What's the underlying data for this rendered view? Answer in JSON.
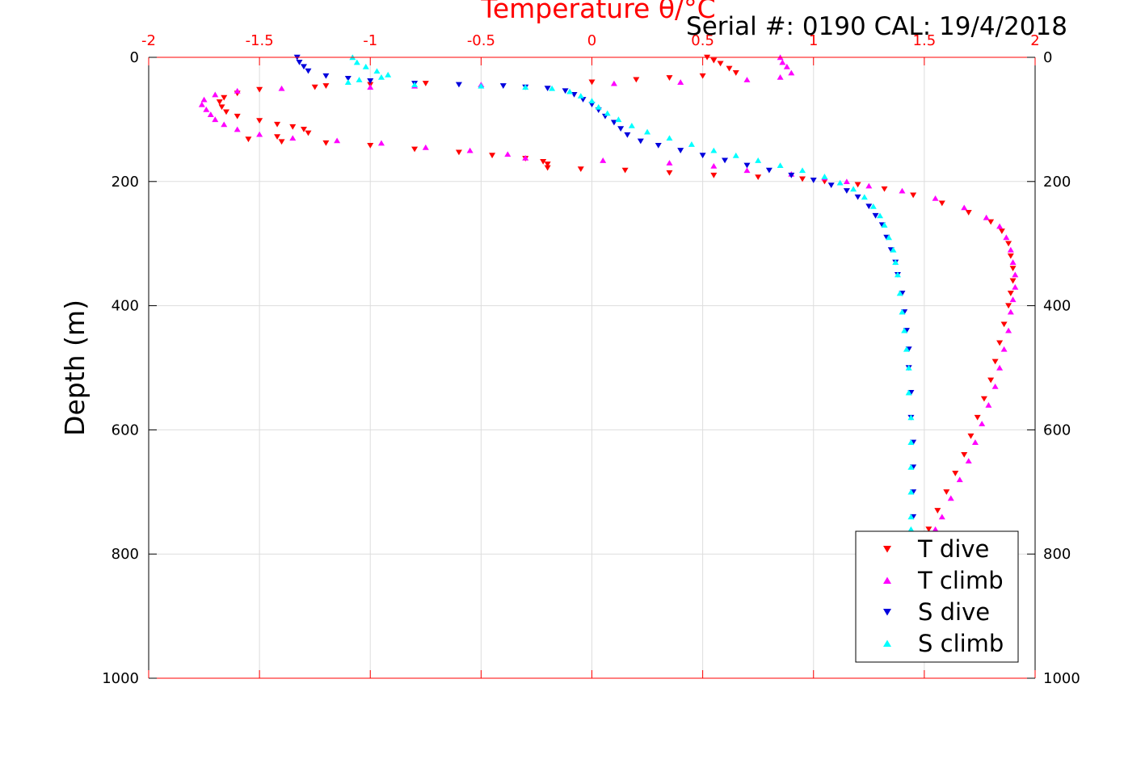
{
  "chart_data": {
    "type": "scatter",
    "title": "Serial #: 0190  CAL: 19/4/2018",
    "xlabel": "Temperature θ/°C",
    "ylabel": "Depth (m)",
    "xlim": [
      -2,
      2
    ],
    "ylim": [
      1000,
      0
    ],
    "x_ticks": [
      "-2",
      "-1.5",
      "-1",
      "-0.5",
      "0",
      "0.5",
      "1",
      "1.5",
      "2"
    ],
    "y_ticks": [
      "0",
      "200",
      "400",
      "600",
      "800",
      "1000"
    ],
    "y_ticks_right": [
      "0",
      "200",
      "400",
      "600",
      "800",
      "1000"
    ],
    "grid": true,
    "legend_position": "bottom-right",
    "colors": {
      "axis_x": "#ff0000",
      "axis_y": "#000000",
      "grid": "#dddddd"
    },
    "series": [
      {
        "name": "T dive",
        "marker": "triangle-down",
        "color": "#ff0000",
        "points": [
          [
            0.52,
            0
          ],
          [
            0.55,
            5
          ],
          [
            0.58,
            10
          ],
          [
            0.62,
            18
          ],
          [
            0.65,
            25
          ],
          [
            0.5,
            30
          ],
          [
            0.35,
            33
          ],
          [
            0.2,
            36
          ],
          [
            0.0,
            40
          ],
          [
            -0.75,
            42
          ],
          [
            -1.0,
            44
          ],
          [
            -1.2,
            46
          ],
          [
            -1.25,
            48
          ],
          [
            -1.5,
            52
          ],
          [
            -1.6,
            58
          ],
          [
            -1.66,
            65
          ],
          [
            -1.68,
            72
          ],
          [
            -1.67,
            80
          ],
          [
            -1.65,
            88
          ],
          [
            -1.6,
            95
          ],
          [
            -1.5,
            102
          ],
          [
            -1.42,
            108
          ],
          [
            -1.35,
            112
          ],
          [
            -1.3,
            116
          ],
          [
            -1.28,
            122
          ],
          [
            -1.42,
            128
          ],
          [
            -1.55,
            132
          ],
          [
            -1.4,
            136
          ],
          [
            -1.2,
            138
          ],
          [
            -1.0,
            142
          ],
          [
            -0.8,
            148
          ],
          [
            -0.6,
            153
          ],
          [
            -0.45,
            158
          ],
          [
            -0.3,
            163
          ],
          [
            -0.22,
            168
          ],
          [
            -0.2,
            172
          ],
          [
            -0.2,
            178
          ],
          [
            -0.05,
            180
          ],
          [
            0.15,
            182
          ],
          [
            0.35,
            186
          ],
          [
            0.55,
            190
          ],
          [
            0.75,
            193
          ],
          [
            0.95,
            196
          ],
          [
            1.05,
            200
          ],
          [
            1.2,
            205
          ],
          [
            1.32,
            212
          ],
          [
            1.45,
            222
          ],
          [
            1.58,
            235
          ],
          [
            1.7,
            250
          ],
          [
            1.8,
            265
          ],
          [
            1.85,
            280
          ],
          [
            1.88,
            300
          ],
          [
            1.89,
            320
          ],
          [
            1.9,
            340
          ],
          [
            1.9,
            360
          ],
          [
            1.89,
            380
          ],
          [
            1.88,
            400
          ],
          [
            1.86,
            430
          ],
          [
            1.84,
            460
          ],
          [
            1.82,
            490
          ],
          [
            1.8,
            520
          ],
          [
            1.77,
            550
          ],
          [
            1.74,
            580
          ],
          [
            1.71,
            610
          ],
          [
            1.68,
            640
          ],
          [
            1.64,
            670
          ],
          [
            1.6,
            700
          ],
          [
            1.56,
            730
          ],
          [
            1.52,
            760
          ]
        ]
      },
      {
        "name": "T climb",
        "marker": "triangle-up",
        "color": "#ff00ff",
        "points": [
          [
            0.85,
            0
          ],
          [
            0.86,
            8
          ],
          [
            0.88,
            15
          ],
          [
            0.9,
            25
          ],
          [
            0.85,
            32
          ],
          [
            0.7,
            36
          ],
          [
            0.4,
            40
          ],
          [
            0.1,
            42
          ],
          [
            -0.5,
            44
          ],
          [
            -0.8,
            46
          ],
          [
            -1.0,
            48
          ],
          [
            -1.4,
            50
          ],
          [
            -1.6,
            54
          ],
          [
            -1.7,
            60
          ],
          [
            -1.75,
            68
          ],
          [
            -1.76,
            76
          ],
          [
            -1.74,
            84
          ],
          [
            -1.72,
            92
          ],
          [
            -1.7,
            100
          ],
          [
            -1.66,
            108
          ],
          [
            -1.6,
            116
          ],
          [
            -1.5,
            124
          ],
          [
            -1.35,
            130
          ],
          [
            -1.15,
            134
          ],
          [
            -0.95,
            138
          ],
          [
            -0.75,
            145
          ],
          [
            -0.55,
            150
          ],
          [
            -0.38,
            156
          ],
          [
            -0.3,
            162
          ],
          [
            0.05,
            166
          ],
          [
            0.35,
            170
          ],
          [
            0.55,
            175
          ],
          [
            0.7,
            182
          ],
          [
            0.9,
            188
          ],
          [
            1.05,
            194
          ],
          [
            1.15,
            200
          ],
          [
            1.25,
            207
          ],
          [
            1.4,
            215
          ],
          [
            1.55,
            227
          ],
          [
            1.68,
            242
          ],
          [
            1.78,
            258
          ],
          [
            1.84,
            272
          ],
          [
            1.87,
            290
          ],
          [
            1.89,
            310
          ],
          [
            1.9,
            330
          ],
          [
            1.91,
            350
          ],
          [
            1.91,
            370
          ],
          [
            1.9,
            390
          ],
          [
            1.89,
            410
          ],
          [
            1.88,
            440
          ],
          [
            1.86,
            470
          ],
          [
            1.84,
            500
          ],
          [
            1.82,
            530
          ],
          [
            1.79,
            560
          ],
          [
            1.76,
            590
          ],
          [
            1.73,
            620
          ],
          [
            1.7,
            650
          ],
          [
            1.66,
            680
          ],
          [
            1.62,
            710
          ],
          [
            1.58,
            740
          ],
          [
            1.55,
            760
          ]
        ]
      },
      {
        "name": "S dive",
        "marker": "triangle-down",
        "color": "#0000dd",
        "points": [
          [
            -1.33,
            0
          ],
          [
            -1.32,
            8
          ],
          [
            -1.3,
            15
          ],
          [
            -1.28,
            22
          ],
          [
            -1.2,
            30
          ],
          [
            -1.1,
            34
          ],
          [
            -1.0,
            38
          ],
          [
            -0.8,
            42
          ],
          [
            -0.6,
            44
          ],
          [
            -0.4,
            46
          ],
          [
            -0.3,
            48
          ],
          [
            -0.2,
            50
          ],
          [
            -0.12,
            54
          ],
          [
            -0.08,
            60
          ],
          [
            -0.04,
            68
          ],
          [
            0.0,
            76
          ],
          [
            0.03,
            85
          ],
          [
            0.06,
            95
          ],
          [
            0.1,
            105
          ],
          [
            0.13,
            115
          ],
          [
            0.16,
            125
          ],
          [
            0.22,
            135
          ],
          [
            0.3,
            142
          ],
          [
            0.4,
            150
          ],
          [
            0.5,
            158
          ],
          [
            0.6,
            166
          ],
          [
            0.7,
            174
          ],
          [
            0.8,
            182
          ],
          [
            0.9,
            190
          ],
          [
            1.0,
            198
          ],
          [
            1.08,
            206
          ],
          [
            1.15,
            215
          ],
          [
            1.2,
            225
          ],
          [
            1.25,
            240
          ],
          [
            1.28,
            255
          ],
          [
            1.31,
            270
          ],
          [
            1.33,
            290
          ],
          [
            1.35,
            310
          ],
          [
            1.37,
            330
          ],
          [
            1.38,
            350
          ],
          [
            1.4,
            380
          ],
          [
            1.41,
            410
          ],
          [
            1.42,
            440
          ],
          [
            1.43,
            470
          ],
          [
            1.43,
            500
          ],
          [
            1.44,
            540
          ],
          [
            1.44,
            580
          ],
          [
            1.45,
            620
          ],
          [
            1.45,
            660
          ],
          [
            1.45,
            700
          ],
          [
            1.45,
            740
          ],
          [
            1.45,
            770
          ]
        ]
      },
      {
        "name": "S climb",
        "marker": "triangle-up",
        "color": "#00ffff",
        "points": [
          [
            -1.08,
            0
          ],
          [
            -1.06,
            8
          ],
          [
            -1.02,
            15
          ],
          [
            -0.97,
            22
          ],
          [
            -0.92,
            28
          ],
          [
            -0.95,
            32
          ],
          [
            -1.05,
            36
          ],
          [
            -1.1,
            40
          ],
          [
            -0.8,
            44
          ],
          [
            -0.5,
            46
          ],
          [
            -0.3,
            48
          ],
          [
            -0.18,
            50
          ],
          [
            -0.1,
            55
          ],
          [
            -0.05,
            62
          ],
          [
            0.0,
            70
          ],
          [
            0.03,
            80
          ],
          [
            0.07,
            90
          ],
          [
            0.12,
            100
          ],
          [
            0.18,
            110
          ],
          [
            0.25,
            120
          ],
          [
            0.35,
            130
          ],
          [
            0.45,
            140
          ],
          [
            0.55,
            150
          ],
          [
            0.65,
            158
          ],
          [
            0.75,
            166
          ],
          [
            0.85,
            174
          ],
          [
            0.95,
            182
          ],
          [
            1.05,
            192
          ],
          [
            1.12,
            202
          ],
          [
            1.18,
            212
          ],
          [
            1.23,
            225
          ],
          [
            1.27,
            240
          ],
          [
            1.3,
            255
          ],
          [
            1.32,
            270
          ],
          [
            1.34,
            290
          ],
          [
            1.36,
            310
          ],
          [
            1.37,
            330
          ],
          [
            1.38,
            350
          ],
          [
            1.39,
            380
          ],
          [
            1.4,
            410
          ],
          [
            1.41,
            440
          ],
          [
            1.42,
            470
          ],
          [
            1.43,
            500
          ],
          [
            1.43,
            540
          ],
          [
            1.44,
            580
          ],
          [
            1.44,
            620
          ],
          [
            1.44,
            660
          ],
          [
            1.44,
            700
          ],
          [
            1.44,
            740
          ],
          [
            1.44,
            760
          ]
        ]
      }
    ]
  }
}
